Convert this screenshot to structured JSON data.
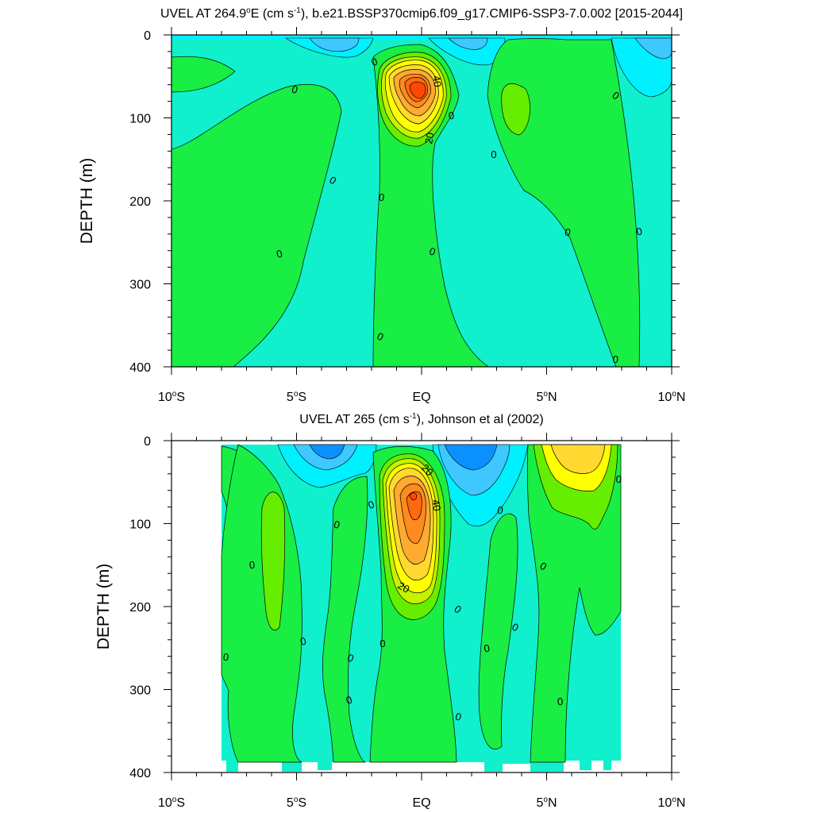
{
  "colors": {
    "c_neg3": "#0a90ff",
    "c_neg2": "#3ec8ff",
    "c_neg1": "#00f0ff",
    "c_0": "#10f0cc",
    "c_pos1": "#18ee44",
    "c_pos2": "#66ee00",
    "c_pos3": "#c4f200",
    "c_pos4": "#ffff00",
    "c_pos5": "#ffd830",
    "c_pos6": "#ffaa30",
    "c_pos7": "#ff8a20",
    "c_pos8": "#ff6a10",
    "c_pos9": "#ff4800"
  },
  "chart_data": [
    {
      "type": "contour",
      "title_main": "UVEL AT 264.9",
      "title_deg": "o",
      "title_e": "E (cm s",
      "title_sup": "-1",
      "title_rest": "), b.e21.BSSP370cmip6.f09_g17.CMIP6-SSP3-7.0.002 [2015-2044]",
      "ylabel": "DEPTH (m)",
      "ylim": [
        400,
        0
      ],
      "yticks": [
        "0",
        "100",
        "200",
        "300",
        "400"
      ],
      "xlim": [
        -10,
        10
      ],
      "xticks": [
        {
          "num": "10",
          "deg": "o",
          "hem": "S"
        },
        {
          "num": "5",
          "deg": "o",
          "hem": "S"
        },
        {
          "num": "EQ",
          "deg": "",
          "hem": ""
        },
        {
          "num": "5",
          "deg": "o",
          "hem": "N"
        },
        {
          "num": "10",
          "deg": "o",
          "hem": "N"
        }
      ],
      "contour_labels": [
        "0",
        "20",
        "40"
      ],
      "features": [
        {
          "name": "equatorial undercurrent core",
          "lat": 0.0,
          "depth": 70,
          "max_speed": 90
        }
      ]
    },
    {
      "type": "contour",
      "title_main": "UVEL AT 265 (cm s",
      "title_sup": "-1",
      "title_rest": "), Johnson et al (2002)",
      "ylabel": "DEPTH (m)",
      "ylim": [
        400,
        0
      ],
      "yticks": [
        "0",
        "100",
        "200",
        "300",
        "400"
      ],
      "xlim": [
        -10,
        10
      ],
      "xticks": [
        {
          "num": "10",
          "deg": "o",
          "hem": "S"
        },
        {
          "num": "5",
          "deg": "o",
          "hem": "S"
        },
        {
          "num": "EQ",
          "deg": "",
          "hem": ""
        },
        {
          "num": "5",
          "deg": "o",
          "hem": "N"
        },
        {
          "num": "10",
          "deg": "o",
          "hem": "N"
        }
      ],
      "contour_labels": [
        "0",
        "20",
        "40"
      ],
      "features": [
        {
          "name": "equatorial undercurrent core",
          "lat": -0.3,
          "depth": 65,
          "max_speed": 80
        },
        {
          "name": "north equatorial countercurrent",
          "lat": 6.5,
          "depth": 10,
          "max_speed": 30
        }
      ]
    }
  ]
}
